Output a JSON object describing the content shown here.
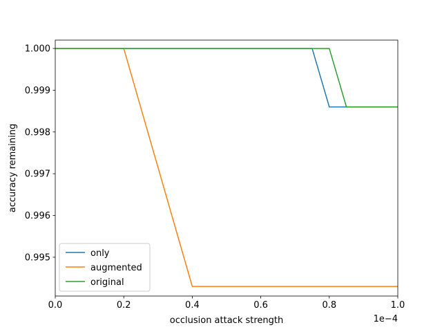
{
  "chart_data": {
    "type": "line",
    "title": "",
    "xlabel": "occlusion attack strength",
    "ylabel": "accuracy remaining",
    "x_offset_label": "1e−4",
    "xlim": [
      0.0,
      1.0
    ],
    "ylim": [
      0.99407,
      1.0002
    ],
    "x_ticks": [
      0.0,
      0.2,
      0.4,
      0.6,
      0.8,
      1.0
    ],
    "x_tick_labels": [
      "0.0",
      "0.2",
      "0.4",
      "0.6",
      "0.8",
      "1.0"
    ],
    "y_ticks": [
      0.995,
      0.996,
      0.997,
      0.998,
      0.999,
      1.0
    ],
    "y_tick_labels": [
      "0.995",
      "0.996",
      "0.997",
      "0.998",
      "0.999",
      "1.000"
    ],
    "grid": false,
    "legend_position": "bottom-left",
    "series": [
      {
        "name": "only",
        "color": "#1f77b4",
        "x": [
          0.0,
          0.75,
          0.8,
          1.0
        ],
        "y": [
          1.0,
          1.0,
          0.9986,
          0.9986
        ]
      },
      {
        "name": "augmented",
        "color": "#ff7f0e",
        "x": [
          0.0,
          0.2,
          0.4,
          1.0
        ],
        "y": [
          1.0,
          1.0,
          0.9943,
          0.9943
        ]
      },
      {
        "name": "original",
        "color": "#2ca02c",
        "x": [
          0.0,
          0.8,
          0.85,
          1.0
        ],
        "y": [
          1.0,
          1.0,
          0.9986,
          0.9986
        ]
      }
    ]
  }
}
